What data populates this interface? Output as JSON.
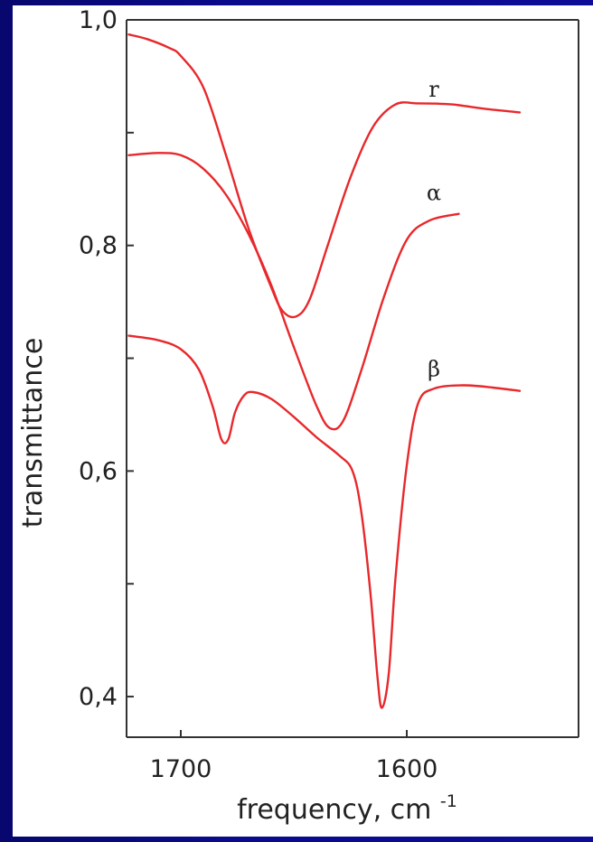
{
  "chart_data": {
    "type": "line",
    "xlabel": "frequency, cm",
    "xlabel_superscript": "-1",
    "ylabel": "transmittance",
    "x_reversed": true,
    "xlim": [
      1724,
      1524
    ],
    "ylim": [
      0.364,
      1.0
    ],
    "x_ticks": [
      {
        "value": 1700,
        "label": "1700"
      },
      {
        "value": 1600,
        "label": "1600"
      }
    ],
    "y_ticks": [
      {
        "value": 1.0,
        "label": "1,0"
      },
      {
        "value": 0.9,
        "label": ""
      },
      {
        "value": 0.8,
        "label": "0,8"
      },
      {
        "value": 0.7,
        "label": ""
      },
      {
        "value": 0.6,
        "label": "0,6"
      },
      {
        "value": 0.5,
        "label": ""
      },
      {
        "value": 0.4,
        "label": "0,4"
      }
    ],
    "grid": false,
    "line_color": "#e8282b",
    "series": [
      {
        "name": "r",
        "points": [
          [
            1723,
            0.987
          ],
          [
            1715,
            0.983
          ],
          [
            1705,
            0.975
          ],
          [
            1700,
            0.968
          ],
          [
            1690,
            0.94
          ],
          [
            1680,
            0.88
          ],
          [
            1670,
            0.815
          ],
          [
            1660,
            0.763
          ],
          [
            1655,
            0.742
          ],
          [
            1649,
            0.737
          ],
          [
            1643,
            0.752
          ],
          [
            1635,
            0.8
          ],
          [
            1625,
            0.86
          ],
          [
            1615,
            0.905
          ],
          [
            1605,
            0.925
          ],
          [
            1595,
            0.926
          ],
          [
            1580,
            0.925
          ],
          [
            1565,
            0.921
          ],
          [
            1550,
            0.918
          ]
        ]
      },
      {
        "name": "α",
        "points": [
          [
            1723,
            0.88
          ],
          [
            1710,
            0.882
          ],
          [
            1700,
            0.88
          ],
          [
            1690,
            0.868
          ],
          [
            1680,
            0.845
          ],
          [
            1670,
            0.81
          ],
          [
            1660,
            0.765
          ],
          [
            1650,
            0.71
          ],
          [
            1640,
            0.658
          ],
          [
            1634,
            0.638
          ],
          [
            1628,
            0.645
          ],
          [
            1620,
            0.69
          ],
          [
            1610,
            0.755
          ],
          [
            1600,
            0.805
          ],
          [
            1590,
            0.822
          ],
          [
            1577,
            0.828
          ]
        ]
      },
      {
        "name": "β",
        "points": [
          [
            1723,
            0.72
          ],
          [
            1710,
            0.716
          ],
          [
            1700,
            0.708
          ],
          [
            1692,
            0.69
          ],
          [
            1686,
            0.658
          ],
          [
            1682,
            0.628
          ],
          [
            1679,
            0.628
          ],
          [
            1676,
            0.652
          ],
          [
            1672,
            0.667
          ],
          [
            1668,
            0.67
          ],
          [
            1660,
            0.664
          ],
          [
            1650,
            0.648
          ],
          [
            1640,
            0.63
          ],
          [
            1630,
            0.614
          ],
          [
            1624,
            0.6
          ],
          [
            1620,
            0.562
          ],
          [
            1616,
            0.49
          ],
          [
            1613,
            0.418
          ],
          [
            1611,
            0.39
          ],
          [
            1608,
            0.42
          ],
          [
            1605,
            0.505
          ],
          [
            1600,
            0.605
          ],
          [
            1595,
            0.66
          ],
          [
            1588,
            0.673
          ],
          [
            1575,
            0.676
          ],
          [
            1562,
            0.674
          ],
          [
            1550,
            0.671
          ]
        ]
      }
    ],
    "series_labels": [
      {
        "series": "r",
        "x": 1588,
        "y": 0.932
      },
      {
        "series": "α",
        "x": 1588,
        "y": 0.84
      },
      {
        "series": "β",
        "x": 1588,
        "y": 0.684
      }
    ]
  }
}
